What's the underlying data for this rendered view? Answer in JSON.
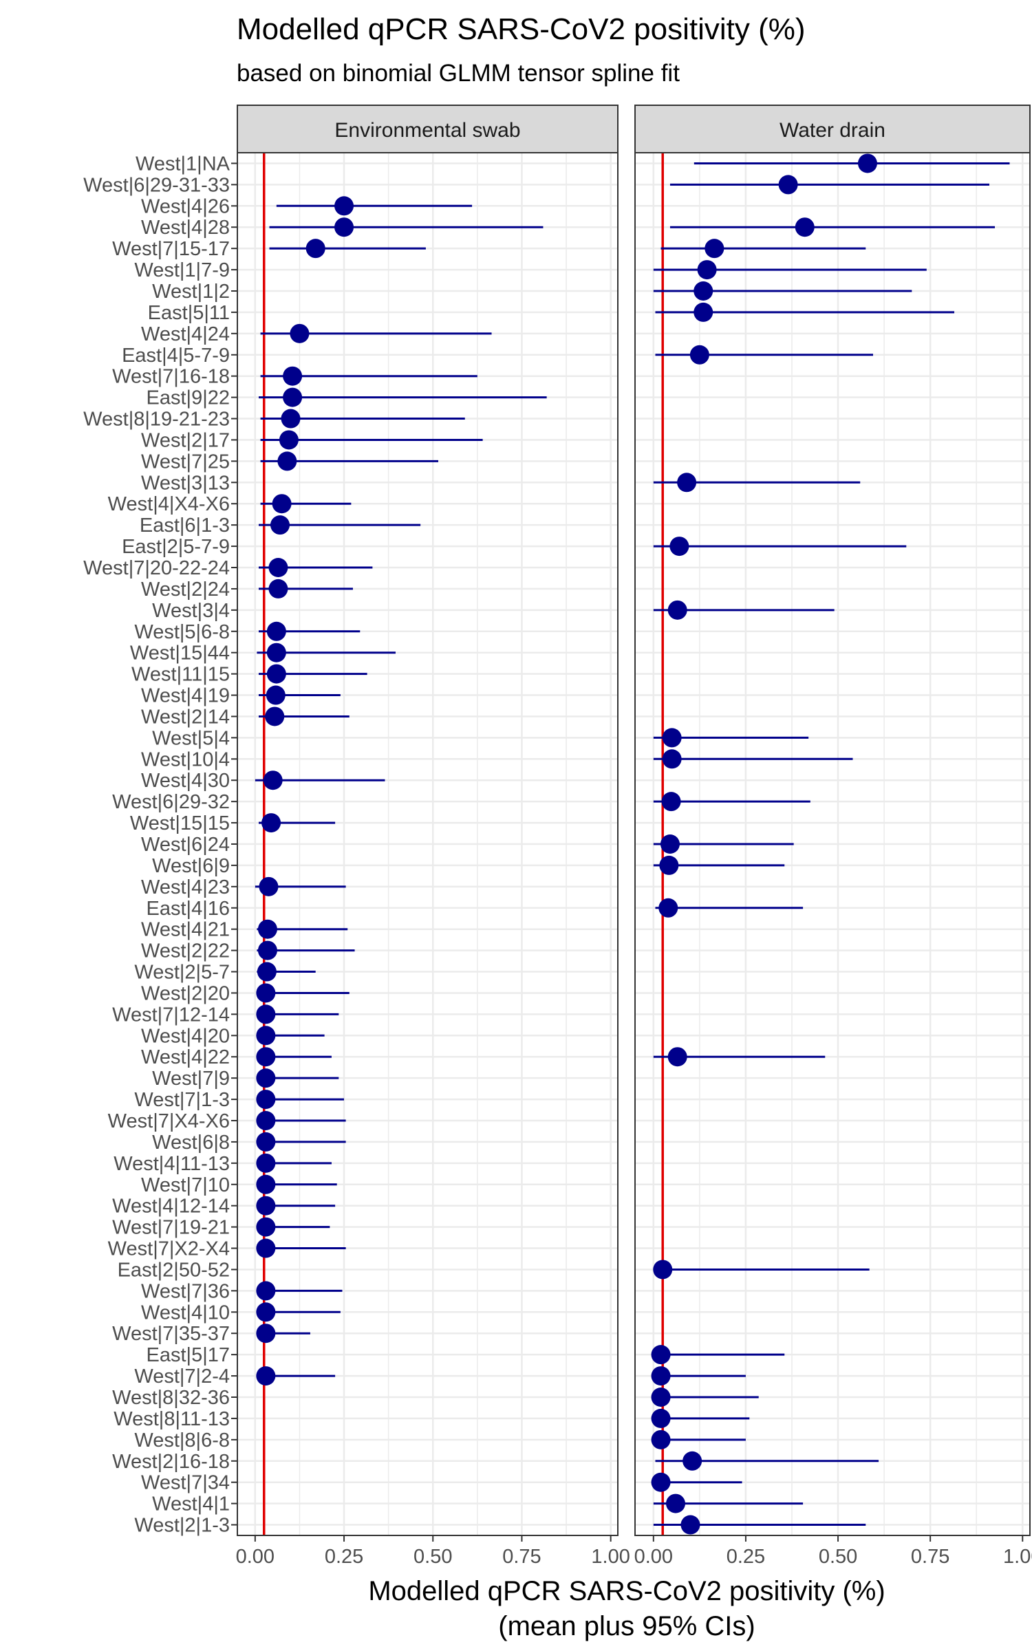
{
  "chart_data": {
    "type": "dot-errorbar",
    "title": "Modelled qPCR SARS-CoV2 positivity (%)",
    "subtitle": "based on binomial GLMM tensor spline fit",
    "xlabel": [
      "Modelled qPCR SARS-CoV2 positivity (%)",
      "(mean plus 95% CIs)"
    ],
    "xlim": [
      -0.05,
      1.02
    ],
    "xticks": [
      0,
      0.25,
      0.5,
      0.75,
      1
    ],
    "xtick_labels": [
      "0.00",
      "0.25",
      "0.50",
      "0.75",
      "1.00"
    ],
    "reference_line": 0.025,
    "grid": true,
    "categories": [
      "West|1|NA",
      "West|6|29-31-33",
      "West|4|26",
      "West|4|28",
      "West|7|15-17",
      "West|1|7-9",
      "West|1|2",
      "East|5|11",
      "West|4|24",
      "East|4|5-7-9",
      "West|7|16-18",
      "East|9|22",
      "West|8|19-21-23",
      "West|2|17",
      "West|7|25",
      "West|3|13",
      "West|4|X4-X6",
      "East|6|1-3",
      "East|2|5-7-9",
      "West|7|20-22-24",
      "West|2|24",
      "West|3|4",
      "West|5|6-8",
      "West|15|44",
      "West|11|15",
      "West|4|19",
      "West|2|14",
      "West|5|4",
      "West|10|4",
      "West|4|30",
      "West|6|29-32",
      "West|15|15",
      "West|6|24",
      "West|6|9",
      "West|4|23",
      "East|4|16",
      "West|4|21",
      "West|2|22",
      "West|2|5-7",
      "West|2|20",
      "West|7|12-14",
      "West|4|20",
      "West|4|22",
      "West|7|9",
      "West|7|1-3",
      "West|7|X4-X6",
      "West|6|8",
      "West|4|11-13",
      "West|7|10",
      "West|4|12-14",
      "West|7|19-21",
      "West|7|X2-X4",
      "East|2|50-52",
      "West|7|36",
      "West|4|10",
      "West|7|35-37",
      "East|5|17",
      "West|7|2-4",
      "West|8|32-36",
      "West|8|11-13",
      "West|8|6-8",
      "West|2|16-18",
      "West|7|34",
      "West|4|1",
      "West|2|1-3"
    ],
    "facets": [
      {
        "name": "Environmental swab",
        "points": [
          {
            "cat": "West|6|29-31-33",
            "mean": null,
            "lo": null,
            "hi": null
          },
          {
            "cat": "West|4|26",
            "mean": 0.25,
            "lo": 0.06,
            "hi": 0.61
          },
          {
            "cat": "West|4|28",
            "mean": 0.25,
            "lo": 0.04,
            "hi": 0.81
          },
          {
            "cat": "West|7|15-17",
            "mean": 0.17,
            "lo": 0.04,
            "hi": 0.48
          },
          {
            "cat": "West|4|24",
            "mean": 0.125,
            "lo": 0.015,
            "hi": 0.665
          },
          {
            "cat": "West|7|16-18",
            "mean": 0.105,
            "lo": 0.015,
            "hi": 0.625
          },
          {
            "cat": "East|9|22",
            "mean": 0.105,
            "lo": 0.01,
            "hi": 0.82
          },
          {
            "cat": "West|8|19-21-23",
            "mean": 0.1,
            "lo": 0.015,
            "hi": 0.59
          },
          {
            "cat": "West|2|17",
            "mean": 0.095,
            "lo": 0.015,
            "hi": 0.64
          },
          {
            "cat": "West|7|25",
            "mean": 0.09,
            "lo": 0.015,
            "hi": 0.515
          },
          {
            "cat": "West|4|X4-X6",
            "mean": 0.075,
            "lo": 0.015,
            "hi": 0.27
          },
          {
            "cat": "East|6|1-3",
            "mean": 0.07,
            "lo": 0.01,
            "hi": 0.465
          },
          {
            "cat": "West|7|20-22-24",
            "mean": 0.065,
            "lo": 0.01,
            "hi": 0.33
          },
          {
            "cat": "West|2|24",
            "mean": 0.065,
            "lo": 0.01,
            "hi": 0.275
          },
          {
            "cat": "West|5|6-8",
            "mean": 0.06,
            "lo": 0.01,
            "hi": 0.295
          },
          {
            "cat": "West|15|44",
            "mean": 0.06,
            "lo": 0.005,
            "hi": 0.395
          },
          {
            "cat": "West|11|15",
            "mean": 0.06,
            "lo": 0.01,
            "hi": 0.315
          },
          {
            "cat": "West|4|19",
            "mean": 0.058,
            "lo": 0.01,
            "hi": 0.24
          },
          {
            "cat": "West|2|14",
            "mean": 0.055,
            "lo": 0.01,
            "hi": 0.265
          },
          {
            "cat": "West|4|30",
            "mean": 0.05,
            "lo": 0.0,
            "hi": 0.365
          },
          {
            "cat": "West|15|15",
            "mean": 0.045,
            "lo": 0.01,
            "hi": 0.225
          },
          {
            "cat": "West|4|23",
            "mean": 0.038,
            "lo": 0.0,
            "hi": 0.255
          },
          {
            "cat": "West|4|21",
            "mean": 0.035,
            "lo": 0.005,
            "hi": 0.26
          },
          {
            "cat": "West|2|22",
            "mean": 0.035,
            "lo": 0.005,
            "hi": 0.28
          },
          {
            "cat": "West|2|5-7",
            "mean": 0.033,
            "lo": 0.005,
            "hi": 0.17
          },
          {
            "cat": "West|2|20",
            "mean": 0.03,
            "lo": 0.005,
            "hi": 0.265
          },
          {
            "cat": "West|7|12-14",
            "mean": 0.03,
            "lo": 0.005,
            "hi": 0.235
          },
          {
            "cat": "West|4|20",
            "mean": 0.03,
            "lo": 0.005,
            "hi": 0.195
          },
          {
            "cat": "West|4|22",
            "mean": 0.03,
            "lo": 0.005,
            "hi": 0.215
          },
          {
            "cat": "West|7|9",
            "mean": 0.03,
            "lo": 0.005,
            "hi": 0.235
          },
          {
            "cat": "West|7|1-3",
            "mean": 0.03,
            "lo": 0.005,
            "hi": 0.25
          },
          {
            "cat": "West|7|X4-X6",
            "mean": 0.03,
            "lo": 0.005,
            "hi": 0.255
          },
          {
            "cat": "West|6|8",
            "mean": 0.03,
            "lo": 0.005,
            "hi": 0.255
          },
          {
            "cat": "West|4|11-13",
            "mean": 0.03,
            "lo": 0.005,
            "hi": 0.215
          },
          {
            "cat": "West|7|10",
            "mean": 0.03,
            "lo": 0.005,
            "hi": 0.23
          },
          {
            "cat": "West|4|12-14",
            "mean": 0.03,
            "lo": 0.005,
            "hi": 0.225
          },
          {
            "cat": "West|7|19-21",
            "mean": 0.03,
            "lo": 0.005,
            "hi": 0.21
          },
          {
            "cat": "West|7|X2-X4",
            "mean": 0.03,
            "lo": 0.005,
            "hi": 0.255
          },
          {
            "cat": "West|7|36",
            "mean": 0.03,
            "lo": 0.005,
            "hi": 0.245
          },
          {
            "cat": "West|4|10",
            "mean": 0.03,
            "lo": 0.005,
            "hi": 0.24
          },
          {
            "cat": "West|7|35-37",
            "mean": 0.03,
            "lo": 0.005,
            "hi": 0.155
          },
          {
            "cat": "West|7|2-4",
            "mean": 0.03,
            "lo": 0.005,
            "hi": 0.225
          }
        ]
      },
      {
        "name": "Water drain",
        "points": [
          {
            "cat": "West|1|NA",
            "mean": 0.58,
            "lo": 0.11,
            "hi": 0.965
          },
          {
            "cat": "West|6|29-31-33",
            "mean": 0.365,
            "lo": 0.045,
            "hi": 0.91
          },
          {
            "cat": "West|4|28",
            "mean": 0.41,
            "lo": 0.045,
            "hi": 0.925
          },
          {
            "cat": "West|7|15-17",
            "mean": 0.165,
            "lo": 0.02,
            "hi": 0.575
          },
          {
            "cat": "West|1|7-9",
            "mean": 0.145,
            "lo": 0.0,
            "hi": 0.74
          },
          {
            "cat": "West|1|2",
            "mean": 0.135,
            "lo": 0.0,
            "hi": 0.7
          },
          {
            "cat": "East|5|11",
            "mean": 0.135,
            "lo": 0.005,
            "hi": 0.815
          },
          {
            "cat": "East|4|5-7-9",
            "mean": 0.125,
            "lo": 0.005,
            "hi": 0.595
          },
          {
            "cat": "West|3|13",
            "mean": 0.09,
            "lo": 0.0,
            "hi": 0.56
          },
          {
            "cat": "East|2|5-7-9",
            "mean": 0.07,
            "lo": 0.0,
            "hi": 0.685
          },
          {
            "cat": "West|3|4",
            "mean": 0.065,
            "lo": 0.0,
            "hi": 0.49
          },
          {
            "cat": "West|5|4",
            "mean": 0.05,
            "lo": 0.0,
            "hi": 0.42
          },
          {
            "cat": "West|10|4",
            "mean": 0.05,
            "lo": 0.0,
            "hi": 0.54
          },
          {
            "cat": "West|6|29-32",
            "mean": 0.048,
            "lo": 0.0,
            "hi": 0.425
          },
          {
            "cat": "West|6|24",
            "mean": 0.045,
            "lo": 0.0,
            "hi": 0.38
          },
          {
            "cat": "West|6|9",
            "mean": 0.042,
            "lo": 0.0,
            "hi": 0.355
          },
          {
            "cat": "East|4|16",
            "mean": 0.04,
            "lo": 0.005,
            "hi": 0.405
          },
          {
            "cat": "West|4|22",
            "mean": 0.065,
            "lo": 0.0,
            "hi": 0.465
          },
          {
            "cat": "East|2|50-52",
            "mean": 0.025,
            "lo": 0.0,
            "hi": 0.585
          },
          {
            "cat": "East|5|17",
            "mean": 0.02,
            "lo": 0.0,
            "hi": 0.355
          },
          {
            "cat": "West|7|2-4",
            "mean": 0.02,
            "lo": 0.0,
            "hi": 0.25
          },
          {
            "cat": "West|8|32-36",
            "mean": 0.02,
            "lo": 0.0,
            "hi": 0.285
          },
          {
            "cat": "West|8|11-13",
            "mean": 0.02,
            "lo": 0.0,
            "hi": 0.26
          },
          {
            "cat": "West|8|6-8",
            "mean": 0.02,
            "lo": 0.0,
            "hi": 0.25
          },
          {
            "cat": "West|2|16-18",
            "mean": 0.105,
            "lo": 0.005,
            "hi": 0.61
          },
          {
            "cat": "West|7|34",
            "mean": 0.02,
            "lo": 0.0,
            "hi": 0.24
          },
          {
            "cat": "West|4|1",
            "mean": 0.06,
            "lo": 0.0,
            "hi": 0.405
          },
          {
            "cat": "West|2|1-3",
            "mean": 0.1,
            "lo": 0.0,
            "hi": 0.575
          }
        ]
      }
    ],
    "colors": {
      "point": "#00008b",
      "errorbar": "#00008b",
      "reference_line": "#e00000",
      "strip_fill": "#d9d9d9",
      "panel_border": "#333333",
      "grid": "#ebebeb"
    }
  }
}
